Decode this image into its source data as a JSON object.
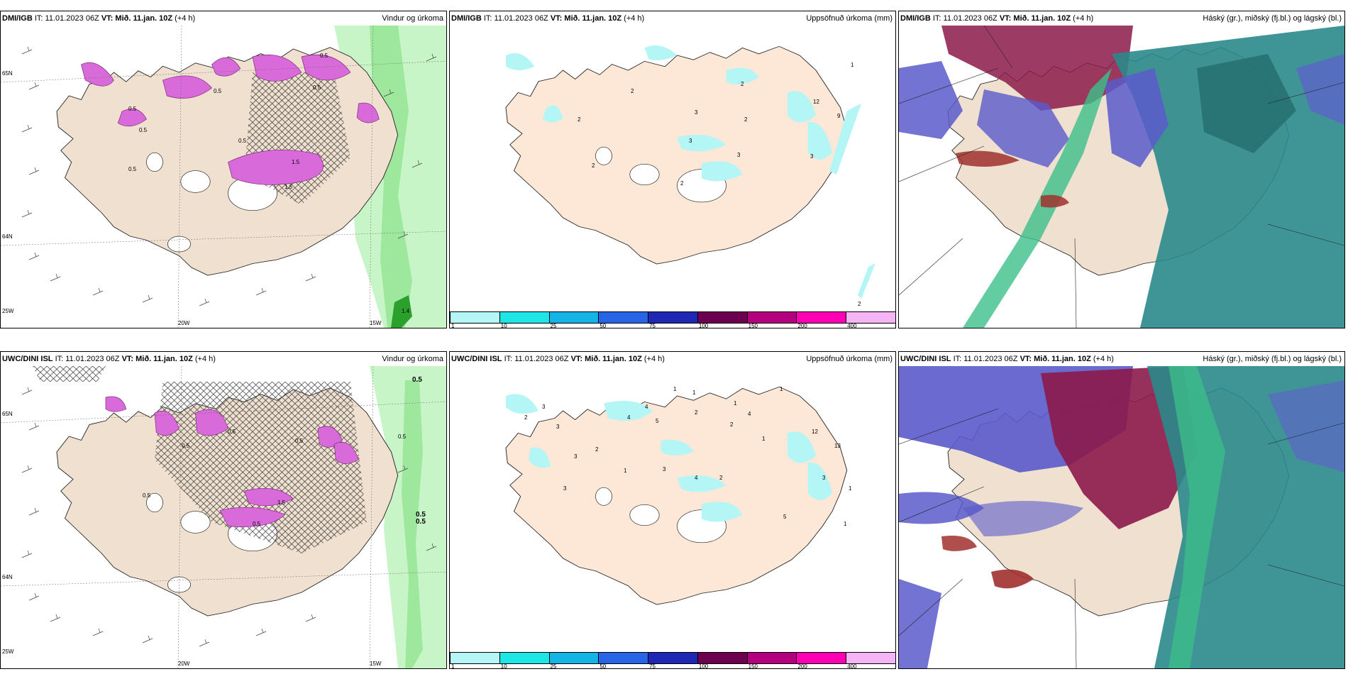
{
  "panels": [
    {
      "source": "DMI/IGB",
      "it_label": "IT:",
      "it_value": "11.01.2023 06Z",
      "vt_label": "VT:",
      "vt_value": "Mið. 11.jan. 10Z",
      "lead": "(+4 h)",
      "title": "Vindur og úrkoma"
    },
    {
      "source": "DMI/IGB",
      "it_label": "IT:",
      "it_value": "11.01.2023 06Z",
      "vt_label": "VT:",
      "vt_value": "Mið. 11.jan. 10Z",
      "lead": "(+4 h)",
      "title": "Uppsöfnuð úrkoma (mm)"
    },
    {
      "source": "DMI/IGB",
      "it_label": "IT:",
      "it_value": "11.01.2023 06Z",
      "vt_label": "VT:",
      "vt_value": "Mið. 11.jan. 10Z",
      "lead": "(+4 h)",
      "title": "Háský (gr.), miðský (fj.bl.) og lágský (bl.)"
    },
    {
      "source": "UWC/DINI ISL",
      "it_label": "IT:",
      "it_value": "11.01.2023 06Z",
      "vt_label": "VT:",
      "vt_value": "Mið. 11.jan. 10Z",
      "lead": "(+4 h)",
      "title": "Vindur og úrkoma"
    },
    {
      "source": "UWC/DINI ISL",
      "it_label": "IT:",
      "it_value": "11.01.2023 06Z",
      "vt_label": "VT:",
      "vt_value": "Mið. 11.jan. 10Z",
      "lead": "(+4 h)",
      "title": "Uppsöfnuð úrkoma (mm)"
    },
    {
      "source": "UWC/DINI ISL",
      "it_label": "IT:",
      "it_value": "11.01.2023 06Z",
      "vt_label": "VT:",
      "vt_value": "Mið. 11.jan. 10Z",
      "lead": "(+4 h)",
      "title": "Háský (gr.), miðský (fj.bl.) og lágský (bl.)"
    }
  ],
  "axes": {
    "lon_20w": "20W",
    "lon_15w": "15W",
    "lat_65n": "65N",
    "lat_64n": "64N",
    "lat_25w": "25W"
  },
  "colorbar": {
    "labels": [
      "1",
      "10",
      "25",
      "50",
      "75",
      "100",
      "150",
      "200",
      "400"
    ],
    "colors": [
      "#b4f5f5",
      "#1ee6e6",
      "#14b4e6",
      "#2864e6",
      "#1e28b4",
      "#6e0050",
      "#b4007f",
      "#ff00b4",
      "#f5b4f5"
    ]
  },
  "precip_values_top": [
    "1",
    "2",
    "2",
    "2",
    "2",
    "2",
    "3",
    "3",
    "3",
    "3",
    "2",
    "12",
    "9",
    "2"
  ],
  "precip_values_bottom": [
    "1",
    "1",
    "2",
    "3",
    "3",
    "3",
    "3",
    "2",
    "4",
    "4",
    "5",
    "2",
    "1",
    "1",
    "2",
    "4",
    "12",
    "13",
    "3",
    "3",
    "2",
    "4",
    "5",
    "1",
    "1",
    "1",
    "1"
  ],
  "wind_values_top": [
    "0.5",
    "0.5",
    "1.5",
    "0.5",
    "0.5",
    "0.5",
    "0.5",
    "1.5",
    "0.5",
    "1.4"
  ],
  "wind_values_bottom": [
    "0.5",
    "0.5",
    "0.5",
    "0.5",
    "0.5",
    "0.5",
    "0.5",
    "1.5",
    "0.5",
    "0.5"
  ],
  "colors": {
    "land": "#efe0cf",
    "land_peach": "#fde8d8",
    "precip_magenta": "#d96ad9",
    "precip_cyan": "#b4f5f5",
    "green_light": "#b8f2b8",
    "green_dark": "#2ca02c",
    "cloud_high": "#8b1a4a",
    "cloud_mid": "#5a5acb",
    "cloud_low": "#2a8a8a"
  }
}
